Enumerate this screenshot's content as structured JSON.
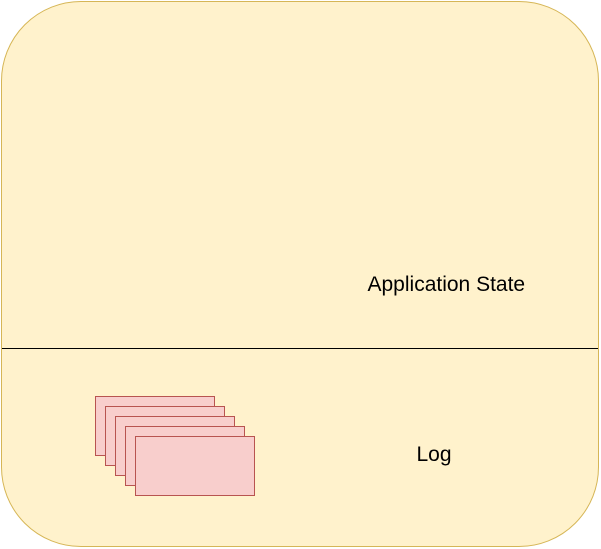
{
  "diagram": {
    "sections": {
      "state_label": "Application State",
      "log_label": "Log"
    },
    "log_entries": {
      "count": 5
    },
    "colors": {
      "container_fill": "#fff2cc",
      "container_stroke": "#d6b656",
      "entry_fill": "#f8cecc",
      "entry_stroke": "#b85450",
      "divider": "#000000"
    }
  }
}
